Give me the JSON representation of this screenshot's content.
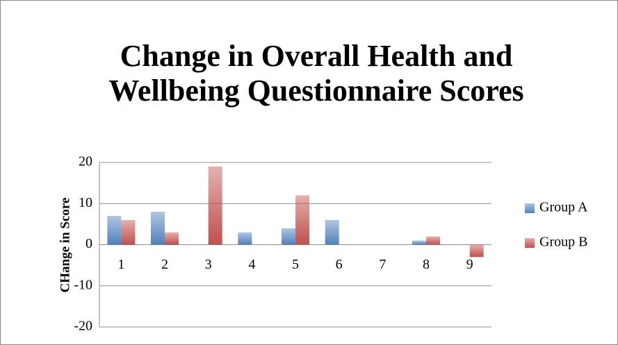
{
  "chart_data": {
    "type": "bar",
    "title": "Change in Overall Health and Wellbeing Questionnaire Scores",
    "y_label": "CHange in Score",
    "categories": [
      "1",
      "2",
      "3",
      "4",
      "5",
      "6",
      "7",
      "8",
      "9"
    ],
    "series": [
      {
        "name": "Group A",
        "color": "#4f81bd",
        "values": [
          7,
          8,
          0,
          3,
          4,
          6,
          0,
          1,
          0
        ]
      },
      {
        "name": "Group B",
        "color": "#c0504d",
        "values": [
          6,
          3,
          19,
          0,
          12,
          0,
          0,
          2,
          -3
        ]
      }
    ],
    "ylim": [
      -20,
      20
    ],
    "yticks": [
      -20,
      -10,
      0,
      10,
      20
    ],
    "grid": true,
    "legend": "right"
  }
}
